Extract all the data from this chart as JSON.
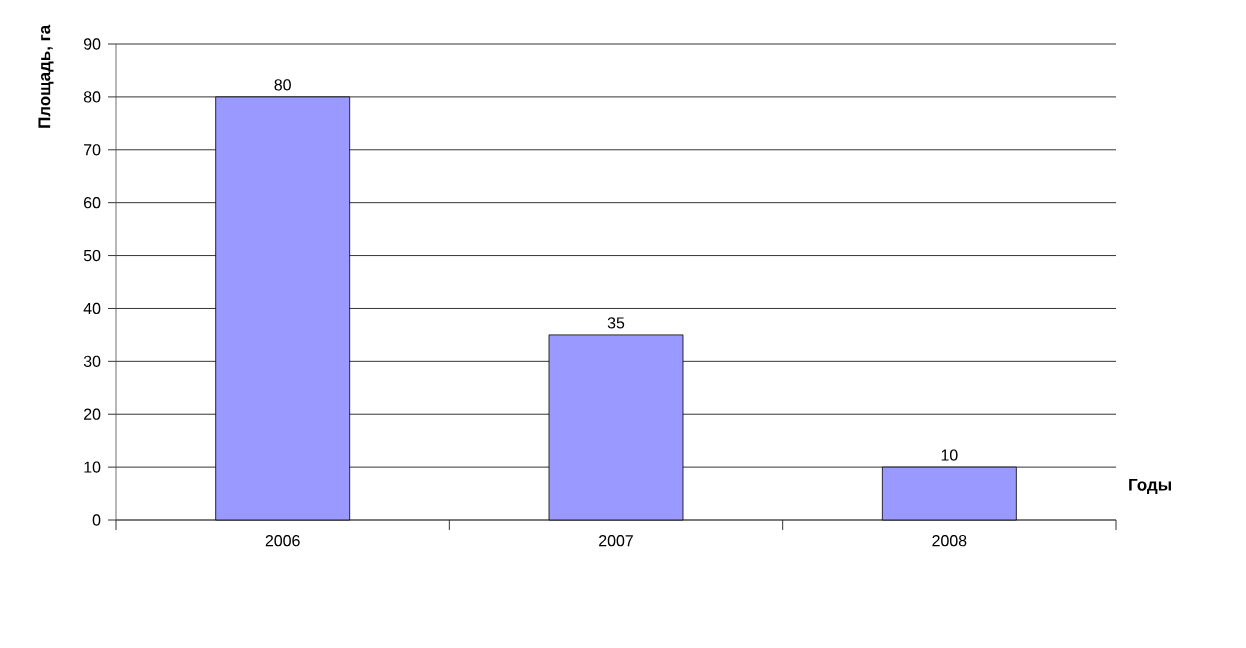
{
  "chart_data": {
    "type": "bar",
    "ylabel": "Площадь, га",
    "xlabel": "Годы",
    "categories": [
      "2006",
      "2007",
      "2008"
    ],
    "values": [
      80,
      35,
      10
    ],
    "color": "#9999ff",
    "ylim": [
      0,
      90
    ],
    "yticks": [
      0,
      10,
      20,
      30,
      40,
      50,
      60,
      70,
      80,
      90
    ],
    "grid": "y",
    "data_labels": true
  }
}
